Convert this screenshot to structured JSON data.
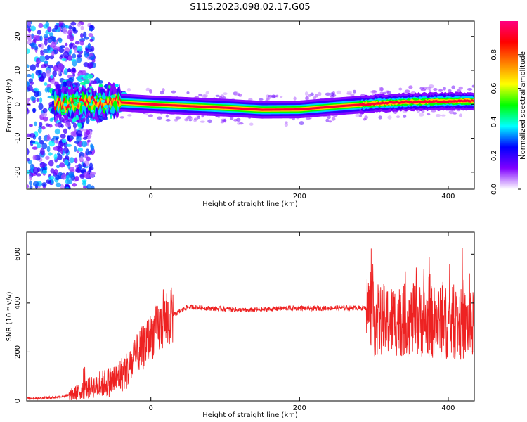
{
  "title": "S115.2023.098.02.17.G05",
  "chart_data": [
    {
      "type": "heatmap",
      "xlabel": "Height of straight line (km)",
      "ylabel": "Frequency (Hz)",
      "xlim": [
        -167,
        435
      ],
      "ylim": [
        -25,
        24.5
      ],
      "xticks": [
        0,
        200,
        400
      ],
      "yticks": [
        -20,
        -10,
        0,
        10,
        20
      ],
      "colorbar": {
        "label": "Normalized spectral amplitude",
        "range": [
          0,
          1
        ],
        "ticks": [
          "0.0",
          "0.2",
          "0.4",
          "0.6",
          "0.8"
        ],
        "tick_values": [
          0,
          0.2,
          0.4,
          0.6,
          0.8
        ],
        "colors": [
          "#ffffff",
          "#8000ff",
          "#0000ff",
          "#00ffff",
          "#00ff00",
          "#ffff00",
          "#ff8000",
          "#ff0000",
          "#ff0080"
        ]
      },
      "ridge": [
        {
          "x": -130,
          "f": 0.0
        },
        {
          "x": -100,
          "f": 0.5
        },
        {
          "x": -70,
          "f": 0.3
        },
        {
          "x": -40,
          "f": 0.5
        },
        {
          "x": 0,
          "f": 0.0
        },
        {
          "x": 50,
          "f": -0.5
        },
        {
          "x": 100,
          "f": -1.0
        },
        {
          "x": 150,
          "f": -1.6
        },
        {
          "x": 200,
          "f": -1.5
        },
        {
          "x": 250,
          "f": -0.6
        },
        {
          "x": 300,
          "f": 0.2
        },
        {
          "x": 350,
          "f": 0.7
        },
        {
          "x": 400,
          "f": 0.9
        },
        {
          "x": 435,
          "f": 1.0
        }
      ]
    },
    {
      "type": "line",
      "xlabel": "Height of straight line (km)",
      "ylabel": "SNR (10 * v/v)",
      "xlim": [
        -167,
        435
      ],
      "ylim": [
        0,
        690
      ],
      "xticks": [
        0,
        200,
        400
      ],
      "yticks": [
        0,
        200,
        400,
        600
      ],
      "series": [
        {
          "color": "#ee2222",
          "x": [
            -167,
            -150,
            -130,
            -110,
            -90,
            -70,
            -50,
            -30,
            -15,
            0,
            15,
            30,
            50,
            70,
            100,
            130,
            160,
            190,
            220,
            250,
            280,
            295,
            300,
            320,
            340,
            360,
            380,
            400,
            420,
            435
          ],
          "y": [
            10,
            12,
            14,
            22,
            45,
            65,
            85,
            130,
            200,
            260,
            310,
            350,
            385,
            380,
            375,
            370,
            375,
            380,
            378,
            380,
            380,
            380,
            330,
            330,
            330,
            330,
            320,
            320,
            310,
            300
          ]
        }
      ]
    }
  ]
}
